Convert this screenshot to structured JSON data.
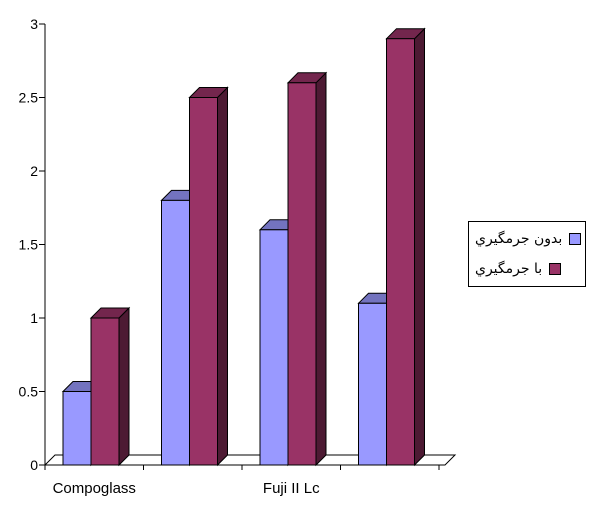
{
  "chart_data": {
    "type": "bar",
    "categories": [
      "Compoglass",
      "",
      "Fuji II Lc",
      ""
    ],
    "series": [
      {
        "name": "بدون جرمگيري",
        "color": "#9999ff",
        "values": [
          0.5,
          1.8,
          1.6,
          1.1
        ]
      },
      {
        "name": "با جرمگيري",
        "color": "#993366",
        "values": [
          1.0,
          2.5,
          2.6,
          2.9
        ]
      }
    ],
    "yticks": [
      "0",
      "0.5",
      "1",
      "1.5",
      "2",
      "2.5",
      "3"
    ],
    "ylim": [
      0,
      3
    ],
    "title": "",
    "xlabel": "",
    "ylabel": "",
    "grid": false,
    "legend_position": "right",
    "style": "3d-clustered-column"
  }
}
